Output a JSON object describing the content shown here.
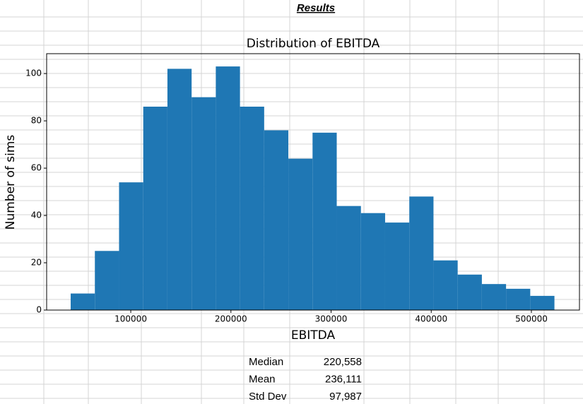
{
  "header": {
    "title": "Results"
  },
  "chart_data": {
    "type": "histogram",
    "title": "Distribution of EBITDA",
    "x_label": "EBITDA",
    "y_label": "Number of sims",
    "bins": [
      40000,
      64150,
      88300,
      112450,
      136600,
      160750,
      184900,
      209050,
      233200,
      257350,
      281500,
      305650,
      329800,
      353950,
      378100,
      402250,
      426400,
      450550,
      474700,
      498850,
      523000
    ],
    "values": [
      7,
      25,
      54,
      86,
      102,
      90,
      103,
      86,
      76,
      64,
      75,
      44,
      41,
      37,
      48,
      21,
      15,
      11,
      9,
      6
    ],
    "color": "#1f77b4",
    "xlim": [
      16000,
      548000
    ],
    "xticks": [
      100000,
      200000,
      300000,
      400000,
      500000
    ],
    "ylim": [
      0,
      108.4
    ],
    "yticks": [
      0,
      20,
      40,
      60,
      80,
      100
    ]
  },
  "stats": {
    "rows": [
      [
        "Median",
        "220,558"
      ],
      [
        "Mean",
        "236,111"
      ],
      [
        "Std Dev",
        "97,987"
      ]
    ]
  }
}
